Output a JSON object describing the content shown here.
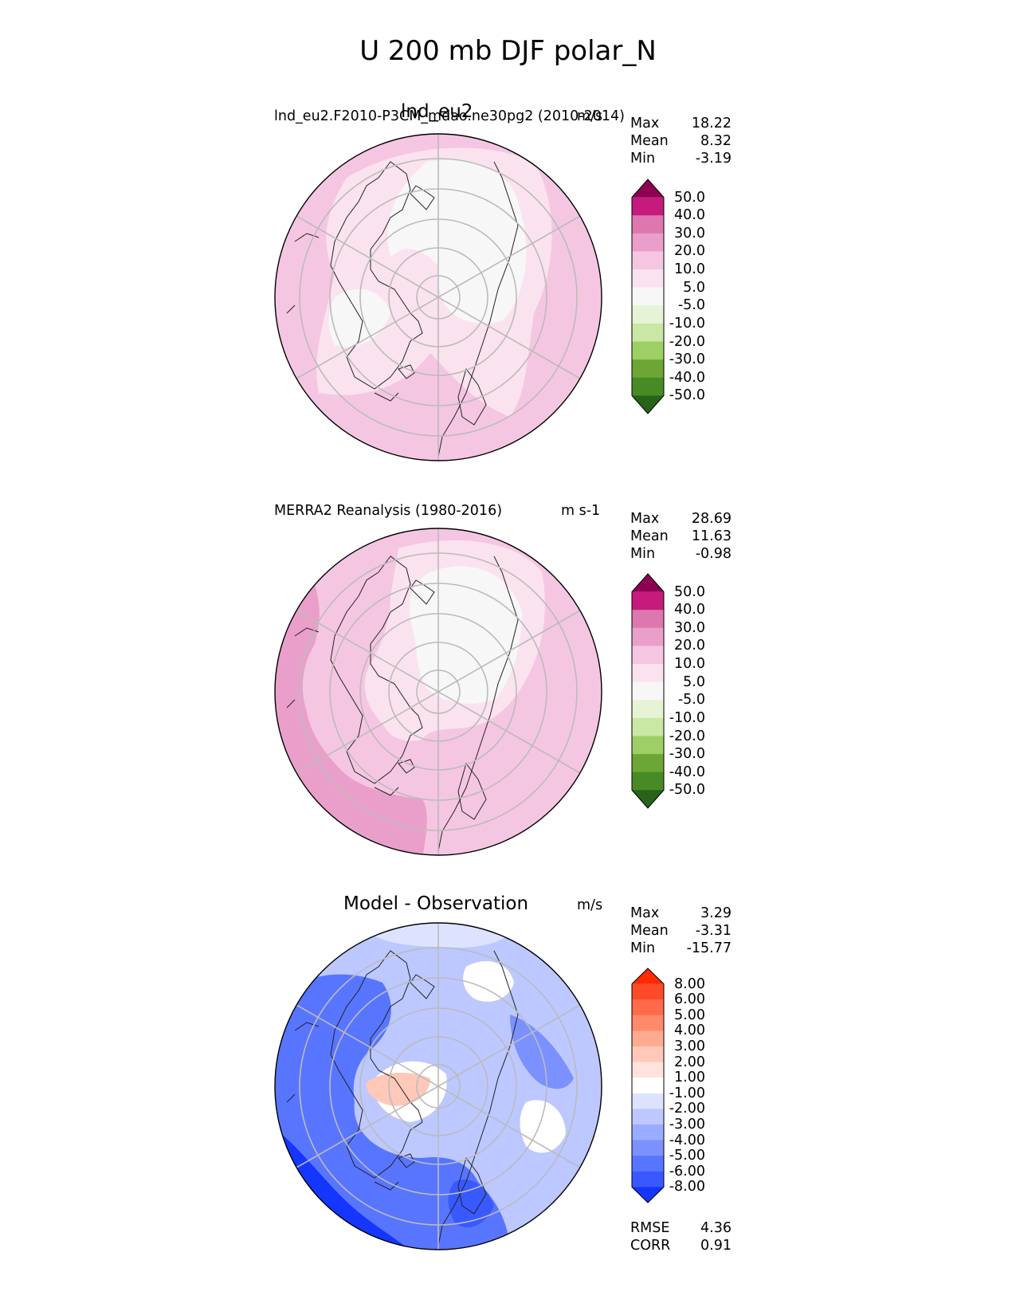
{
  "title": "U 200 mb DJF polar_N",
  "panels": [
    {
      "id": "test",
      "title": "lnd_eu2",
      "subtitle": "lnd_eu2.F2010-P3CM_mdao.ne30pg2 (2010-2014)",
      "units": "m/s",
      "stats": [
        {
          "label": "Max",
          "value": "18.22"
        },
        {
          "label": "Mean",
          "value": "8.32"
        },
        {
          "label": "Min",
          "value": "-3.19"
        }
      ],
      "colorbar": {
        "labels": [
          "50.0",
          "40.0",
          "30.0",
          "20.0",
          "10.0",
          "5.0",
          "-5.0",
          "-10.0",
          "-20.0",
          "-30.0",
          "-40.0",
          "-50.0"
        ],
        "colors": [
          "#8e0152",
          "#c51b7d",
          "#de77ae",
          "#ea9fcb",
          "#f5c6e2",
          "#fbe2ef",
          "#f7f7f7",
          "#e6f4d5",
          "#c8e8a3",
          "#9dcf66",
          "#6ca635",
          "#488b25",
          "#276419"
        ]
      }
    },
    {
      "id": "ref",
      "title": "",
      "subtitle": "MERRA2 Reanalysis (1980-2016)",
      "units": "m s-1",
      "stats": [
        {
          "label": "Max",
          "value": "28.69"
        },
        {
          "label": "Mean",
          "value": "11.63"
        },
        {
          "label": "Min",
          "value": "-0.98"
        }
      ],
      "colorbar": {
        "labels": [
          "50.0",
          "40.0",
          "30.0",
          "20.0",
          "10.0",
          "5.0",
          "-5.0",
          "-10.0",
          "-20.0",
          "-30.0",
          "-40.0",
          "-50.0"
        ],
        "colors": [
          "#8e0152",
          "#c51b7d",
          "#de77ae",
          "#ea9fcb",
          "#f5c6e2",
          "#fbe2ef",
          "#f7f7f7",
          "#e6f4d5",
          "#c8e8a3",
          "#9dcf66",
          "#6ca635",
          "#488b25",
          "#276419"
        ]
      }
    },
    {
      "id": "diff",
      "title": "Model - Observation",
      "subtitle": "",
      "units": "m/s",
      "stats": [
        {
          "label": "Max",
          "value": "3.29"
        },
        {
          "label": "Mean",
          "value": "-3.31"
        },
        {
          "label": "Min",
          "value": "-15.77"
        }
      ],
      "colorbar": {
        "labels": [
          "8.00",
          "6.00",
          "5.00",
          "4.00",
          "3.00",
          "2.00",
          "1.00",
          "-1.00",
          "-2.00",
          "-3.00",
          "-4.00",
          "-5.00",
          "-6.00",
          "-8.00"
        ],
        "colors": [
          "#ff2a00",
          "#ff4a2a",
          "#ff6a4a",
          "#ff8a6a",
          "#ffab8f",
          "#ffc8b8",
          "#ffe3dc",
          "#ffffff",
          "#dde3ff",
          "#bcc8ff",
          "#9aacff",
          "#7a91ff",
          "#5875ff",
          "#3859ff",
          "#1536ff"
        ]
      },
      "extra_stats": [
        {
          "label": "RMSE",
          "value": "4.36"
        },
        {
          "label": "CORR",
          "value": "0.91"
        }
      ]
    }
  ],
  "chart_data": [
    {
      "type": "heatmap",
      "projection": "north polar stereographic",
      "title": "lnd_eu2",
      "subtitle": "lnd_eu2.F2010-P3CM_mdao.ne30pg2 (2010-2014)",
      "units": "m/s",
      "max": 18.22,
      "mean": 8.32,
      "min": -3.19,
      "levels": [
        -50,
        -40,
        -30,
        -20,
        -10,
        -5,
        5,
        10,
        20,
        30,
        40,
        50
      ]
    },
    {
      "type": "heatmap",
      "projection": "north polar stereographic",
      "subtitle": "MERRA2 Reanalysis (1980-2016)",
      "units": "m s-1",
      "max": 28.69,
      "mean": 11.63,
      "min": -0.98,
      "levels": [
        -50,
        -40,
        -30,
        -20,
        -10,
        -5,
        5,
        10,
        20,
        30,
        40,
        50
      ]
    },
    {
      "type": "heatmap",
      "projection": "north polar stereographic",
      "title": "Model - Observation",
      "units": "m/s",
      "max": 3.29,
      "mean": -3.31,
      "min": -15.77,
      "rmse": 4.36,
      "corr": 0.91,
      "levels": [
        -8,
        -6,
        -5,
        -4,
        -3,
        -2,
        -1,
        1,
        2,
        3,
        4,
        5,
        6,
        8
      ]
    }
  ]
}
